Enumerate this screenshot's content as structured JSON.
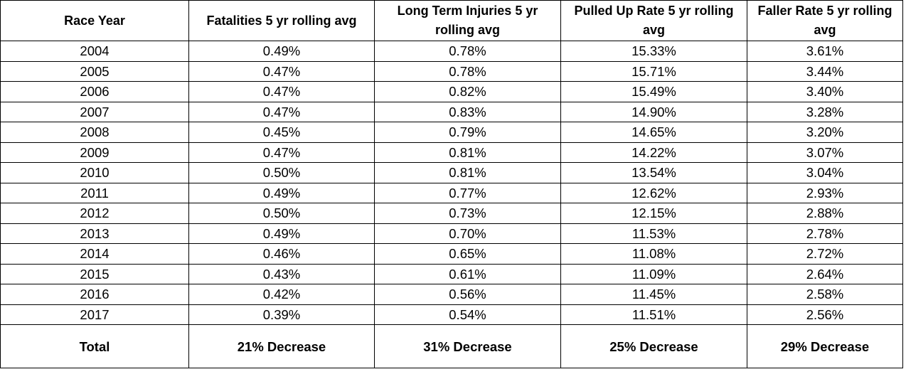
{
  "chart_data": {
    "type": "table",
    "columns": [
      "Race Year",
      "Fatalities 5 yr rolling avg",
      "Long Term Injuries 5 yr rolling avg",
      "Pulled Up Rate 5 yr rolling avg",
      "Faller Rate 5 yr rolling avg"
    ],
    "rows": [
      [
        "2004",
        "0.49%",
        "0.78%",
        "15.33%",
        "3.61%"
      ],
      [
        "2005",
        "0.47%",
        "0.78%",
        "15.71%",
        "3.44%"
      ],
      [
        "2006",
        "0.47%",
        "0.82%",
        "15.49%",
        "3.40%"
      ],
      [
        "2007",
        "0.47%",
        "0.83%",
        "14.90%",
        "3.28%"
      ],
      [
        "2008",
        "0.45%",
        "0.79%",
        "14.65%",
        "3.20%"
      ],
      [
        "2009",
        "0.47%",
        "0.81%",
        "14.22%",
        "3.07%"
      ],
      [
        "2010",
        "0.50%",
        "0.81%",
        "13.54%",
        "3.04%"
      ],
      [
        "2011",
        "0.49%",
        "0.77%",
        "12.62%",
        "2.93%"
      ],
      [
        "2012",
        "0.50%",
        "0.73%",
        "12.15%",
        "2.88%"
      ],
      [
        "2013",
        "0.49%",
        "0.70%",
        "11.53%",
        "2.78%"
      ],
      [
        "2014",
        "0.46%",
        "0.65%",
        "11.08%",
        "2.72%"
      ],
      [
        "2015",
        "0.43%",
        "0.61%",
        "11.09%",
        "2.64%"
      ],
      [
        "2016",
        "0.42%",
        "0.56%",
        "11.45%",
        "2.58%"
      ],
      [
        "2017",
        "0.39%",
        "0.54%",
        "11.51%",
        "2.56%"
      ]
    ],
    "total_row": [
      "Total",
      "21% Decrease",
      "31% Decrease",
      "25% Decrease",
      "29% Decrease"
    ]
  }
}
